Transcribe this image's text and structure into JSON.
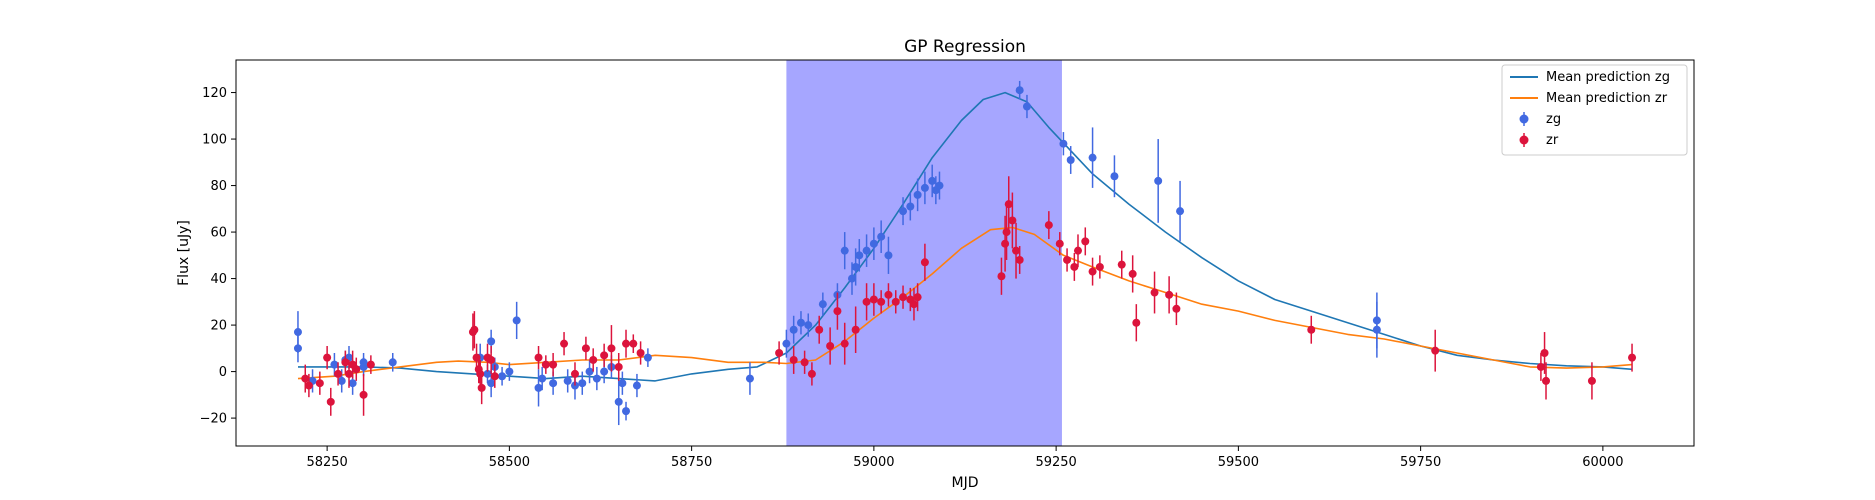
{
  "chart_data": {
    "type": "scatter",
    "title": "GP Regression",
    "xlabel": "MJD",
    "ylabel": "Flux [uJy]",
    "xlim": [
      58125,
      60125
    ],
    "ylim": [
      -32,
      134
    ],
    "xticks": [
      58250,
      58500,
      58750,
      59000,
      59250,
      59500,
      59750,
      60000
    ],
    "yticks": [
      -20,
      0,
      20,
      40,
      60,
      80,
      100,
      120
    ],
    "grid": false,
    "legend_position": "top-right",
    "shaded_region": {
      "x_start": 58880,
      "x_end": 59258,
      "color": "#a6a6ff"
    },
    "lines": [
      {
        "name": "Mean prediction zg",
        "color": "#1f77b4",
        "points": [
          [
            58210,
            2
          ],
          [
            58260,
            2
          ],
          [
            58300,
            2
          ],
          [
            58350,
            1.5
          ],
          [
            58400,
            0
          ],
          [
            58450,
            -1
          ],
          [
            58500,
            -2
          ],
          [
            58550,
            -3
          ],
          [
            58600,
            -2
          ],
          [
            58650,
            -3
          ],
          [
            58700,
            -4
          ],
          [
            58750,
            -1
          ],
          [
            58800,
            1
          ],
          [
            58840,
            2
          ],
          [
            58880,
            8
          ],
          [
            58920,
            20
          ],
          [
            58960,
            36
          ],
          [
            59000,
            53
          ],
          [
            59040,
            72
          ],
          [
            59080,
            92
          ],
          [
            59120,
            108
          ],
          [
            59150,
            117
          ],
          [
            59180,
            120
          ],
          [
            59210,
            116
          ],
          [
            59240,
            105
          ],
          [
            59270,
            95
          ],
          [
            59300,
            85
          ],
          [
            59350,
            72
          ],
          [
            59400,
            60
          ],
          [
            59450,
            49
          ],
          [
            59500,
            39
          ],
          [
            59550,
            31
          ],
          [
            59600,
            26
          ],
          [
            59650,
            21
          ],
          [
            59700,
            16
          ],
          [
            59750,
            11
          ],
          [
            59800,
            7
          ],
          [
            59850,
            5
          ],
          [
            59900,
            3.5
          ],
          [
            59950,
            2.5
          ],
          [
            60000,
            2
          ],
          [
            60040,
            1
          ]
        ]
      },
      {
        "name": "Mean prediction zr",
        "color": "#ff7f0e",
        "points": [
          [
            58210,
            -3
          ],
          [
            58260,
            -2
          ],
          [
            58300,
            0
          ],
          [
            58350,
            2
          ],
          [
            58400,
            4
          ],
          [
            58430,
            4.5
          ],
          [
            58470,
            4
          ],
          [
            58500,
            3
          ],
          [
            58550,
            4
          ],
          [
            58600,
            5
          ],
          [
            58650,
            5
          ],
          [
            58700,
            7
          ],
          [
            58750,
            6
          ],
          [
            58800,
            4
          ],
          [
            58850,
            4
          ],
          [
            58880,
            3.5
          ],
          [
            58920,
            5
          ],
          [
            58960,
            13
          ],
          [
            59000,
            23
          ],
          [
            59040,
            32
          ],
          [
            59080,
            42
          ],
          [
            59120,
            53
          ],
          [
            59160,
            61
          ],
          [
            59190,
            62
          ],
          [
            59220,
            59
          ],
          [
            59260,
            50
          ],
          [
            59300,
            45
          ],
          [
            59350,
            39
          ],
          [
            59400,
            34
          ],
          [
            59450,
            29
          ],
          [
            59500,
            26
          ],
          [
            59550,
            22
          ],
          [
            59600,
            19
          ],
          [
            59650,
            16
          ],
          [
            59700,
            14
          ],
          [
            59750,
            11
          ],
          [
            59800,
            8
          ],
          [
            59850,
            5
          ],
          [
            59900,
            2
          ],
          [
            59950,
            1.5
          ],
          [
            60000,
            2
          ],
          [
            60040,
            3
          ]
        ]
      }
    ],
    "series": [
      {
        "name": "zg",
        "color": "#4169e1",
        "points": [
          [
            58210,
            17,
            9
          ],
          [
            58210,
            10,
            6
          ],
          [
            58230,
            -4,
            5
          ],
          [
            58260,
            3,
            5
          ],
          [
            58270,
            -4,
            5
          ],
          [
            58275,
            5,
            4
          ],
          [
            58280,
            6,
            5
          ],
          [
            58285,
            -5,
            5
          ],
          [
            58300,
            4,
            4
          ],
          [
            58300,
            2,
            4
          ],
          [
            58340,
            4,
            4
          ],
          [
            58460,
            6,
            6
          ],
          [
            58470,
            -1,
            4
          ],
          [
            58475,
            13,
            5
          ],
          [
            58475,
            -5,
            6
          ],
          [
            58480,
            2,
            4
          ],
          [
            58490,
            -2,
            4
          ],
          [
            58500,
            0,
            4
          ],
          [
            58510,
            22,
            8
          ],
          [
            58540,
            -7,
            8
          ],
          [
            58545,
            -3,
            5
          ],
          [
            58560,
            -5,
            5
          ],
          [
            58580,
            -4,
            5
          ],
          [
            58590,
            -6,
            6
          ],
          [
            58600,
            -5,
            5
          ],
          [
            58610,
            0,
            5
          ],
          [
            58620,
            -3,
            5
          ],
          [
            58630,
            0,
            5
          ],
          [
            58640,
            2,
            5
          ],
          [
            58650,
            -13,
            10
          ],
          [
            58655,
            -5,
            5
          ],
          [
            58660,
            -17,
            4
          ],
          [
            58675,
            -6,
            5
          ],
          [
            58690,
            6,
            4
          ],
          [
            58830,
            -3,
            7
          ],
          [
            58880,
            12,
            6
          ],
          [
            58890,
            18,
            6
          ],
          [
            58900,
            21,
            5
          ],
          [
            58910,
            20,
            5
          ],
          [
            58930,
            29,
            5
          ],
          [
            58950,
            33,
            5
          ],
          [
            58960,
            52,
            8
          ],
          [
            58970,
            40,
            7
          ],
          [
            58975,
            45,
            8
          ],
          [
            58980,
            50,
            7
          ],
          [
            58990,
            52,
            7
          ],
          [
            59000,
            55,
            7
          ],
          [
            59010,
            58,
            7
          ],
          [
            59020,
            50,
            8
          ],
          [
            59040,
            69,
            6
          ],
          [
            59050,
            71,
            6
          ],
          [
            59060,
            76,
            7
          ],
          [
            59070,
            79,
            7
          ],
          [
            59080,
            82,
            7
          ],
          [
            59085,
            78,
            6
          ],
          [
            59090,
            80,
            6
          ],
          [
            59200,
            121,
            4
          ],
          [
            59210,
            114,
            5
          ],
          [
            59260,
            98,
            5
          ],
          [
            59270,
            91,
            6
          ],
          [
            59300,
            92,
            13
          ],
          [
            59330,
            84,
            9
          ],
          [
            59390,
            82,
            18
          ],
          [
            59420,
            69,
            13
          ],
          [
            59690,
            22,
            12
          ],
          [
            59690,
            18,
            12
          ]
        ]
      },
      {
        "name": "zr",
        "color": "#dc143c",
        "points": [
          [
            58220,
            -3,
            6
          ],
          [
            58225,
            -6,
            5
          ],
          [
            58240,
            -5,
            5
          ],
          [
            58250,
            6,
            5
          ],
          [
            58255,
            -13,
            6
          ],
          [
            58265,
            -1,
            5
          ],
          [
            58275,
            4,
            5
          ],
          [
            58280,
            -1,
            6
          ],
          [
            58285,
            3,
            6
          ],
          [
            58290,
            1,
            5
          ],
          [
            58300,
            -10,
            9
          ],
          [
            58310,
            3,
            4
          ],
          [
            58450,
            17,
            8
          ],
          [
            58452,
            18,
            8
          ],
          [
            58455,
            6,
            6
          ],
          [
            58458,
            1,
            6
          ],
          [
            58460,
            -1,
            6
          ],
          [
            58462,
            -7,
            7
          ],
          [
            58470,
            6,
            6
          ],
          [
            58475,
            5,
            6
          ],
          [
            58480,
            -2,
            5
          ],
          [
            58540,
            6,
            5
          ],
          [
            58550,
            3,
            4
          ],
          [
            58560,
            3,
            5
          ],
          [
            58575,
            12,
            5
          ],
          [
            58590,
            -1,
            5
          ],
          [
            58605,
            10,
            5
          ],
          [
            58615,
            5,
            5
          ],
          [
            58630,
            7,
            5
          ],
          [
            58640,
            10,
            10
          ],
          [
            58650,
            2,
            6
          ],
          [
            58660,
            12,
            6
          ],
          [
            58670,
            12,
            4
          ],
          [
            58680,
            8,
            5
          ],
          [
            58870,
            8,
            5
          ],
          [
            58890,
            5,
            6
          ],
          [
            58905,
            4,
            5
          ],
          [
            58915,
            -1,
            5
          ],
          [
            58925,
            18,
            6
          ],
          [
            58940,
            11,
            8
          ],
          [
            58950,
            26,
            8
          ],
          [
            58960,
            12,
            9
          ],
          [
            58975,
            18,
            10
          ],
          [
            58990,
            30,
            8
          ],
          [
            59000,
            31,
            7
          ],
          [
            59010,
            30,
            5
          ],
          [
            59020,
            33,
            5
          ],
          [
            59030,
            30,
            5
          ],
          [
            59040,
            32,
            5
          ],
          [
            59050,
            31,
            5
          ],
          [
            59055,
            29,
            7
          ],
          [
            59060,
            32,
            6
          ],
          [
            59070,
            47,
            8
          ],
          [
            59175,
            41,
            8
          ],
          [
            59180,
            55,
            12
          ],
          [
            59182,
            60,
            12
          ],
          [
            59185,
            72,
            12
          ],
          [
            59190,
            65,
            12
          ],
          [
            59195,
            52,
            12
          ],
          [
            59200,
            48,
            6
          ],
          [
            59240,
            63,
            6
          ],
          [
            59255,
            55,
            5
          ],
          [
            59265,
            48,
            5
          ],
          [
            59275,
            45,
            6
          ],
          [
            59280,
            52,
            7
          ],
          [
            59290,
            56,
            6
          ],
          [
            59300,
            43,
            6
          ],
          [
            59310,
            45,
            5
          ],
          [
            59340,
            46,
            6
          ],
          [
            59355,
            42,
            8
          ],
          [
            59360,
            21,
            8
          ],
          [
            59385,
            34,
            9
          ],
          [
            59405,
            33,
            8
          ],
          [
            59415,
            27,
            7
          ],
          [
            59600,
            18,
            6
          ],
          [
            59770,
            9,
            9
          ],
          [
            59915,
            2,
            6
          ],
          [
            59920,
            8,
            9
          ],
          [
            59922,
            -4,
            8
          ],
          [
            59985,
            -4,
            8
          ],
          [
            60040,
            6,
            6
          ]
        ]
      }
    ]
  }
}
